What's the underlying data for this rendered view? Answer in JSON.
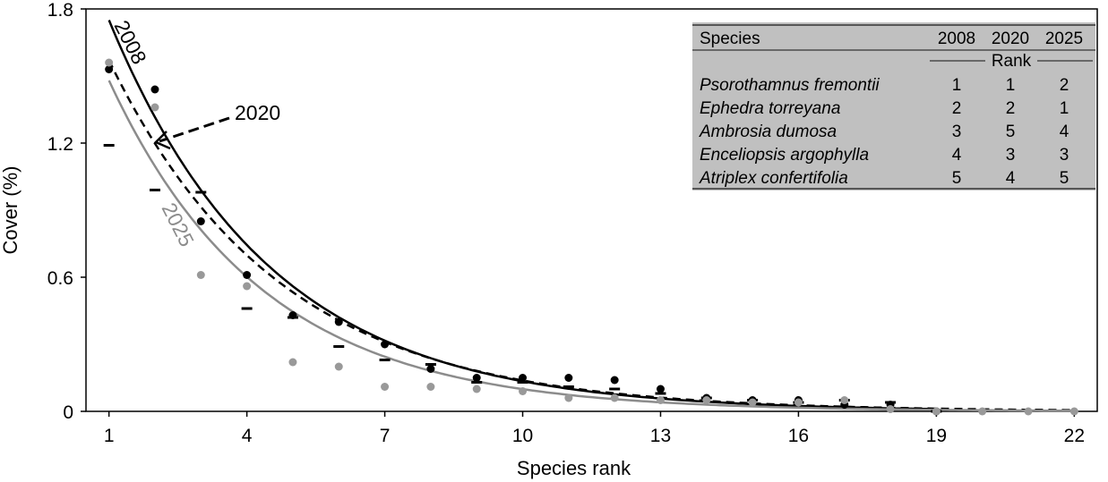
{
  "chart_data": {
    "type": "scatter",
    "xlabel": "Species rank",
    "ylabel": "Cover (%)",
    "xlim": [
      0.5,
      22.5
    ],
    "ylim": [
      0,
      1.8
    ],
    "x_ticks": [
      "1",
      "4",
      "7",
      "10",
      "13",
      "16",
      "19",
      "22"
    ],
    "y_ticks": [
      "0",
      "0.6",
      "1.2",
      "1.8"
    ],
    "grid": false,
    "series": [
      {
        "name": "2008",
        "marker": "dash",
        "color": "#000000",
        "x": [
          1,
          2,
          3,
          4,
          5,
          6,
          7,
          8,
          9,
          10,
          11,
          12,
          13,
          14,
          15,
          16,
          17,
          18,
          19
        ],
        "y": [
          1.19,
          0.99,
          0.98,
          0.46,
          0.42,
          0.29,
          0.23,
          0.21,
          0.13,
          0.13,
          0.11,
          0.1,
          0.08,
          0.06,
          0.05,
          0.04,
          0.05,
          0.04,
          0.0
        ]
      },
      {
        "name": "2020",
        "marker": "dot",
        "color": "#000000",
        "x": [
          1,
          2,
          3,
          4,
          5,
          6,
          7,
          8,
          9,
          10,
          11,
          12,
          13,
          14,
          15,
          16,
          17,
          18,
          19
        ],
        "y": [
          1.53,
          1.44,
          0.85,
          0.61,
          0.43,
          0.4,
          0.3,
          0.19,
          0.15,
          0.15,
          0.15,
          0.14,
          0.1,
          0.06,
          0.05,
          0.05,
          0.03,
          0.03,
          0.0
        ]
      },
      {
        "name": "2025",
        "marker": "dot",
        "color": "#999999",
        "x": [
          1,
          2,
          3,
          4,
          5,
          6,
          7,
          8,
          9,
          10,
          11,
          12,
          13,
          14,
          15,
          16,
          17,
          18,
          19,
          20,
          21,
          22
        ],
        "y": [
          1.56,
          1.36,
          0.61,
          0.56,
          0.22,
          0.2,
          0.11,
          0.11,
          0.1,
          0.09,
          0.06,
          0.06,
          0.05,
          0.05,
          0.04,
          0.04,
          0.05,
          0.01,
          0.0,
          0.0,
          0.0,
          0.0
        ]
      }
    ],
    "fits": [
      {
        "name": "2008",
        "style": "solid",
        "color": "#000000",
        "a": 1.75,
        "b": 0.285,
        "x_end": 19
      },
      {
        "name": "2020",
        "style": "dashed",
        "color": "#000000",
        "a": 1.57,
        "b": 0.27,
        "x_end": 22
      },
      {
        "name": "2025",
        "style": "solid",
        "color": "#8c8c8c",
        "a": 1.48,
        "b": 0.3,
        "x_end": 22
      }
    ],
    "annotations": [
      {
        "text": "2008",
        "color": "#000000"
      },
      {
        "text": "2020",
        "color": "#000000"
      },
      {
        "text": "2025",
        "color": "#8c8c8c"
      }
    ],
    "legend_table": {
      "placement": "top-right",
      "headers": [
        "Species",
        "2008",
        "2020",
        "2025"
      ],
      "subheader": "Rank",
      "rows": [
        [
          "Psorothamnus fremontii",
          "1",
          "1",
          "2"
        ],
        [
          "Ephedra torreyana",
          "2",
          "2",
          "1"
        ],
        [
          "Ambrosia dumosa",
          "3",
          "5",
          "4"
        ],
        [
          "Enceliopsis argophylla",
          "4",
          "3",
          "3"
        ],
        [
          "Atriplex confertifolia",
          "5",
          "4",
          "5"
        ]
      ]
    }
  }
}
